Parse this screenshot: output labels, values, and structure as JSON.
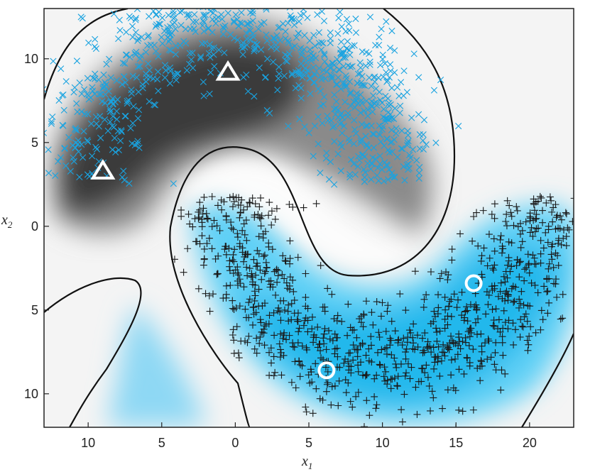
{
  "chart_data": {
    "type": "scatter",
    "title": "",
    "xlabel": "x1",
    "ylabel": "x2",
    "xlim": [
      -13,
      23
    ],
    "ylim": [
      -12,
      13
    ],
    "x_ticks": [
      -10,
      -5,
      0,
      5,
      10,
      15,
      20
    ],
    "x_tick_labels": [
      "10",
      "5",
      "0",
      "5",
      "10",
      "15",
      "20"
    ],
    "y_ticks": [
      10,
      5,
      0,
      -5,
      -10
    ],
    "y_tick_labels": [
      "10",
      "5",
      "0",
      "5",
      "10"
    ],
    "grid": false,
    "legend": "none",
    "colors": {
      "class_a_marker": "#1aa3e0",
      "class_b_marker": "#1a1a1a",
      "class_a_region": "#3c3c3c",
      "class_b_region": "#33bff0",
      "boundary": "#111111",
      "center_marker": "#ffffff"
    },
    "series": [
      {
        "marker": "x",
        "color": "#1aa3e0",
        "shape": "upper crescent",
        "x_range": [
          -13,
          13
        ],
        "y_range": [
          0,
          13
        ]
      },
      {
        "marker": "+",
        "color": "#1a1a1a",
        "shape": "lower crescent",
        "x_range": [
          -3,
          23
        ],
        "y_range": [
          -12,
          1
        ]
      }
    ],
    "centers": [
      {
        "marker": "triangle",
        "x": -9,
        "y": 3.3
      },
      {
        "marker": "triangle",
        "x": -0.5,
        "y": 9.2
      },
      {
        "marker": "circle",
        "x": 6.2,
        "y": -8.6
      },
      {
        "marker": "circle",
        "x": 16.2,
        "y": -3.4
      }
    ],
    "decision_boundary": true
  }
}
